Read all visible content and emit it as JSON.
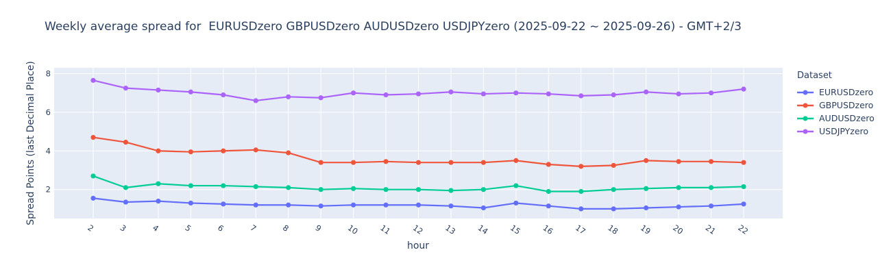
{
  "title": "Weekly average spread for  EURUSDzero GBPUSDzero AUDUSDzero USDJPYzero (2025-09-22 ~ 2025-09-26) - GMT+2/3",
  "chart_data": {
    "type": "line",
    "x": [
      2,
      3,
      4,
      5,
      6,
      7,
      8,
      9,
      10,
      11,
      12,
      13,
      14,
      15,
      16,
      17,
      18,
      19,
      20,
      21,
      22
    ],
    "xlabel": "hour",
    "ylabel": "Spread Points (last Decimal Place)",
    "legend_title": "Dataset",
    "legend_position": "right",
    "ylim": [
      0.5,
      8.3
    ],
    "yticks": [
      2,
      4,
      6,
      8
    ],
    "grid": true,
    "colors": {
      "plot_background": "#E5ECF6",
      "grid": "#FFFFFF",
      "text": "#2A3F5F"
    },
    "series": [
      {
        "name": "EURUSDzero",
        "color": "#636EFA",
        "values": [
          1.55,
          1.35,
          1.4,
          1.3,
          1.25,
          1.2,
          1.2,
          1.15,
          1.2,
          1.2,
          1.2,
          1.15,
          1.05,
          1.3,
          1.15,
          1.0,
          1.0,
          1.05,
          1.1,
          1.15,
          1.25
        ]
      },
      {
        "name": "GBPUSDzero",
        "color": "#EF553B",
        "values": [
          4.7,
          4.45,
          4.0,
          3.95,
          4.0,
          4.05,
          3.9,
          3.4,
          3.4,
          3.45,
          3.4,
          3.4,
          3.4,
          3.5,
          3.3,
          3.2,
          3.25,
          3.5,
          3.45,
          3.45,
          3.4
        ]
      },
      {
        "name": "AUDUSDzero",
        "color": "#00CC96",
        "values": [
          2.7,
          2.1,
          2.3,
          2.2,
          2.2,
          2.15,
          2.1,
          2.0,
          2.05,
          2.0,
          2.0,
          1.95,
          2.0,
          2.2,
          1.9,
          1.9,
          2.0,
          2.05,
          2.1,
          2.1,
          2.15
        ]
      },
      {
        "name": "USDJPYzero",
        "color": "#AB63FA",
        "values": [
          7.65,
          7.25,
          7.15,
          7.05,
          6.9,
          6.6,
          6.8,
          6.75,
          7.0,
          6.9,
          6.95,
          7.05,
          6.95,
          7.0,
          6.95,
          6.85,
          6.9,
          7.05,
          6.95,
          7.0,
          7.2
        ]
      }
    ]
  }
}
